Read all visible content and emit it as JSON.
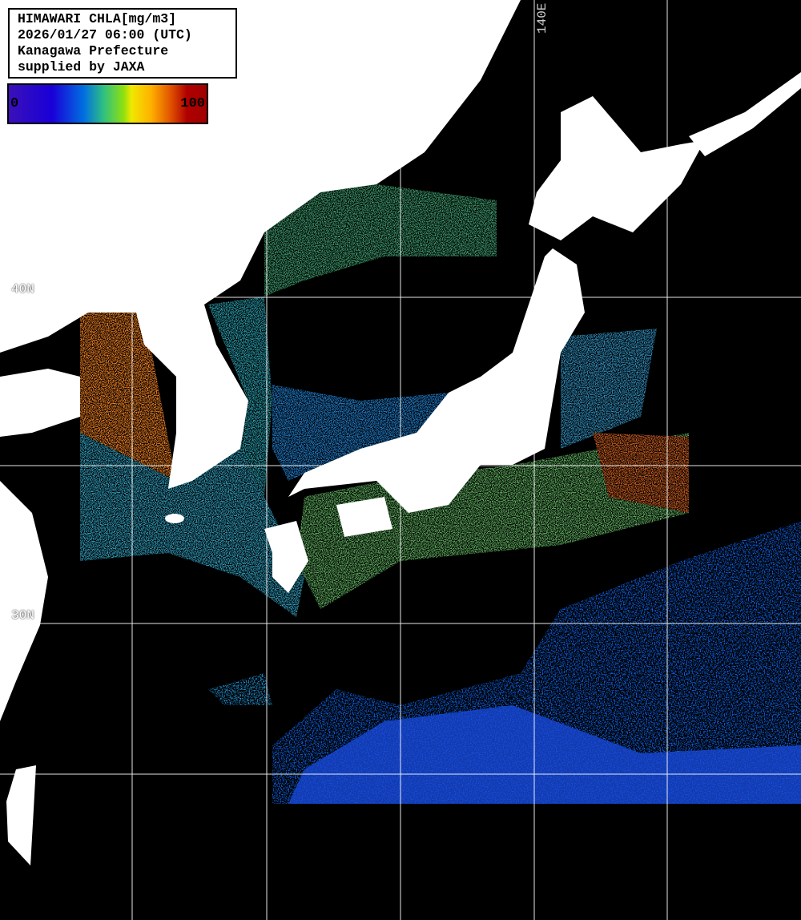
{
  "title": {
    "lines": [
      "HIMAWARI CHLA[mg/m3]",
      "2026/01/27 06:00 (UTC)",
      "Kanagawa Prefecture",
      "supplied by JAXA"
    ]
  },
  "colorbar": {
    "min_label": "0",
    "max_label": "100",
    "colors": [
      "#3a10b8",
      "#1a00d8",
      "#0070e0",
      "#30c080",
      "#8ee010",
      "#f0e800",
      "#ffb000",
      "#e05000",
      "#a00000"
    ]
  },
  "grid": {
    "lat_labels": [
      "40N",
      "30N"
    ],
    "lon_labels": [
      "140E"
    ]
  },
  "colors": {
    "land": "#ffffff",
    "no_data": "#000000",
    "grid": "#ffffff"
  }
}
